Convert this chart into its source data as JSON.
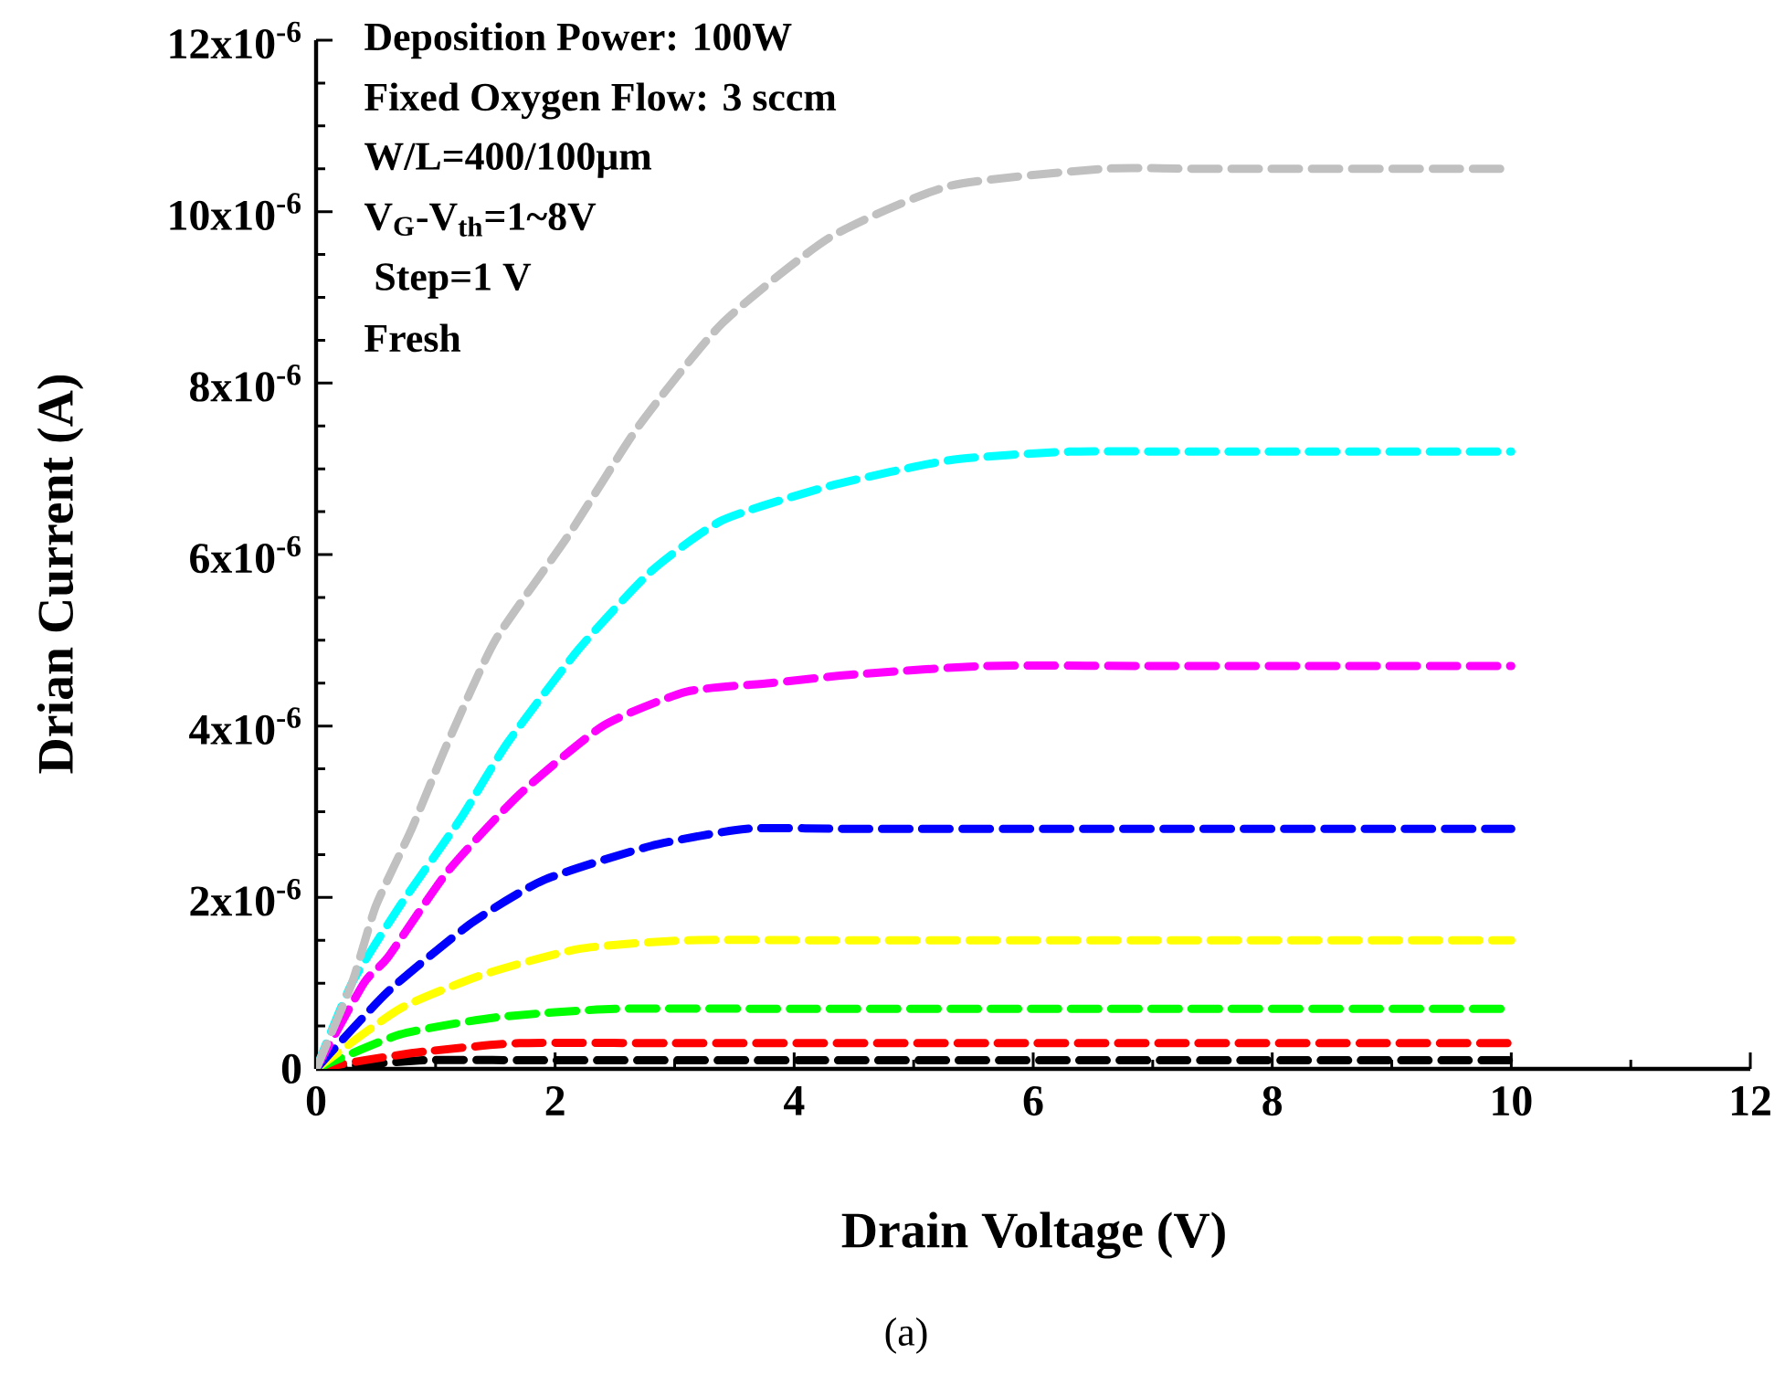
{
  "chart_data": {
    "type": "line",
    "xlabel": "Drain Voltage (V)",
    "ylabel": "Drian Current (A)",
    "annotations": [
      "Deposition Power: 100W",
      "Fixed Oxygen Flow: 3 sccm",
      "W/L=400/100μm",
      "V$_{G}$-V$_{th}$=1~8V",
      " Step=1 V",
      "Fresh",
      "(a)"
    ],
    "xlim": [
      0,
      12
    ],
    "xticks": [
      0,
      2,
      4,
      6,
      8,
      10,
      12
    ],
    "ylim": [
      0,
      1.2e-05
    ],
    "yticks": [
      {
        "value": 0,
        "label": "0"
      },
      {
        "value": 2e-06,
        "label": "2x10$^{-6}$"
      },
      {
        "value": 4e-06,
        "label": "4x10$^{-6}$"
      },
      {
        "value": 6e-06,
        "label": "6x10$^{-6}$"
      },
      {
        "value": 8e-06,
        "label": "8x10$^{-6}$"
      },
      {
        "value": 1e-05,
        "label": "10x10$^{-6}$"
      },
      {
        "value": 1.2e-05,
        "label": "12x10$^{-6}$"
      }
    ],
    "line_style": "dashed",
    "marker": "none",
    "series": [
      {
        "color": "#000000",
        "x": [
          0,
          0.9,
          1.9,
          4,
          10
        ],
        "values": [
          0,
          1e-07,
          1e-07,
          1e-07,
          1e-07
        ]
      },
      {
        "color": "#ff0000",
        "x": [
          0,
          0.4,
          0.9,
          1.7,
          3,
          6,
          10
        ],
        "values": [
          0,
          1e-07,
          2e-07,
          3e-07,
          3e-07,
          3e-07,
          3e-07
        ]
      },
      {
        "color": "#00ff00",
        "x": [
          0,
          0.7,
          1.5,
          2.5,
          4,
          6,
          10
        ],
        "values": [
          0,
          4e-07,
          6e-07,
          7e-07,
          7e-07,
          7e-07,
          7e-07
        ]
      },
      {
        "color": "#ffff00",
        "x": [
          0,
          0.7,
          1.4,
          2.2,
          3.1,
          4.3,
          5.6,
          7.1,
          10
        ],
        "values": [
          0,
          7e-07,
          1.1e-06,
          1.4e-06,
          1.5e-06,
          1.5e-06,
          1.5e-06,
          1.5e-06,
          1.5e-06
        ]
      },
      {
        "color": "#0000ff",
        "x": [
          0,
          0.6,
          1.3,
          1.9,
          2.8,
          3.6,
          4.5,
          6.1,
          10
        ],
        "values": [
          0,
          9e-07,
          1.7e-06,
          2.2e-06,
          2.6e-06,
          2.8e-06,
          2.8e-06,
          2.8e-06,
          2.8e-06
        ]
      },
      {
        "color": "#ff00ff",
        "x": [
          0,
          0.4,
          0.6,
          1.1,
          1.7,
          2.4,
          3.1,
          3.8,
          4.5,
          5.6,
          7.1,
          10
        ],
        "values": [
          0,
          1e-06,
          1.3e-06,
          2.3e-06,
          3.2e-06,
          4e-06,
          4.4e-06,
          4.5e-06,
          4.6e-06,
          4.7e-06,
          4.7e-06,
          4.7e-06
        ]
      },
      {
        "color": "#00ffff",
        "x": [
          0,
          0.3,
          0.7,
          1.2,
          1.6,
          2.2,
          2.8,
          3.4,
          4.3,
          5.3,
          6.3,
          7.4,
          10
        ],
        "values": [
          0,
          1e-06,
          1.9e-06,
          2.9e-06,
          3.8e-06,
          4.9e-06,
          5.8e-06,
          6.4e-06,
          6.8e-06,
          7.1e-06,
          7.2e-06,
          7.2e-06,
          7.2e-06
        ]
      },
      {
        "color": "#c0c0c0",
        "x": [
          0,
          0.3,
          0.5,
          0.8,
          1.1,
          1.5,
          2.1,
          2.7,
          3.4,
          4.3,
          5.3,
          6.6,
          7.4,
          10
        ],
        "values": [
          0,
          1e-06,
          1.9e-06,
          2.8e-06,
          3.8e-06,
          5e-06,
          6.2e-06,
          7.5e-06,
          8.7e-06,
          9.7e-06,
          1.03e-05,
          1.05e-05,
          1.05e-05,
          1.05e-05
        ]
      }
    ]
  }
}
